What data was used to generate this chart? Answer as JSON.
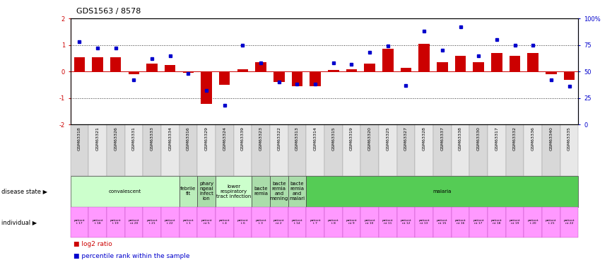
{
  "title": "GDS1563 / 8578",
  "samples": [
    "GSM63318",
    "GSM63321",
    "GSM63326",
    "GSM63331",
    "GSM63333",
    "GSM63334",
    "GSM63316",
    "GSM63329",
    "GSM63324",
    "GSM63339",
    "GSM63323",
    "GSM63322",
    "GSM63313",
    "GSM63314",
    "GSM63315",
    "GSM63319",
    "GSM63320",
    "GSM63325",
    "GSM63327",
    "GSM63328",
    "GSM63337",
    "GSM63338",
    "GSM63330",
    "GSM63317",
    "GSM63332",
    "GSM63336",
    "GSM63340",
    "GSM63335"
  ],
  "log2_ratio": [
    0.55,
    0.55,
    0.55,
    -0.1,
    0.3,
    0.25,
    -0.05,
    -1.22,
    -0.5,
    0.1,
    0.35,
    -0.4,
    -0.55,
    -0.55,
    0.05,
    0.1,
    0.3,
    0.85,
    0.15,
    1.05,
    0.35,
    0.6,
    0.35,
    0.7,
    0.6,
    0.7,
    -0.1,
    -0.3
  ],
  "percentile_rank": [
    78,
    72,
    72,
    42,
    62,
    65,
    48,
    32,
    18,
    75,
    58,
    40,
    38,
    38,
    58,
    57,
    68,
    74,
    37,
    88,
    70,
    92,
    65,
    80,
    75,
    75,
    42,
    36
  ],
  "disease_state_groups": [
    {
      "label": "convalescent",
      "start": 0,
      "end": 6,
      "color": "#ccffcc"
    },
    {
      "label": "febrile\nfit",
      "start": 6,
      "end": 7,
      "color": "#bbeebb"
    },
    {
      "label": "phary\nngeal\ninfect\nion",
      "start": 7,
      "end": 8,
      "color": "#aaddaa"
    },
    {
      "label": "lower\nrespiratory\ntract infection",
      "start": 8,
      "end": 10,
      "color": "#ccffcc"
    },
    {
      "label": "bacte\nremia",
      "start": 10,
      "end": 11,
      "color": "#aaddaa"
    },
    {
      "label": "bacte\nremia\nand\nmening",
      "start": 11,
      "end": 12,
      "color": "#aaddaa"
    },
    {
      "label": "bacte\nremia\nand\nmalari",
      "start": 12,
      "end": 13,
      "color": "#aaddaa"
    },
    {
      "label": "malaria",
      "start": 13,
      "end": 28,
      "color": "#55cc55"
    }
  ],
  "individual_labels": [
    "patient\nt 17",
    "patient\nt 18",
    "patient\nt 19",
    "patient\nnt 20",
    "patient\nt 21",
    "patient\nt 22",
    "patient\nt 1",
    "patient\nnt 5",
    "patient\nt 4",
    "patient\nt 6",
    "patient\nt 3",
    "patient\nnt 2",
    "patient\nt 14",
    "patient\nt 7",
    "patient\nt 8",
    "patient\nnt 9",
    "patient\nnt 10",
    "patient\nnt 11",
    "patient\nnt 12",
    "patient\nnt 13",
    "patient\nnt 15",
    "patient\nnt 16",
    "patient\nnt 17",
    "patient\nnt 18",
    "patient\nnt 19",
    "patient\nt 20",
    "patient\nt 21",
    "patient\nnt 22"
  ],
  "individual_color": "#ff99ff",
  "bar_color": "#cc0000",
  "dot_color": "#0000cc",
  "ylim_left": [
    -2,
    2
  ],
  "ylim_right": [
    0,
    100
  ],
  "yticks_left": [
    -2,
    -1,
    0,
    1,
    2
  ],
  "yticks_right": [
    0,
    25,
    50,
    75,
    100
  ],
  "ytick_labels_right": [
    "0",
    "25",
    "50",
    "75",
    "100%"
  ],
  "hline_color": "#cc0000",
  "dotted_line_color": "#333333",
  "background_color": "#ffffff"
}
